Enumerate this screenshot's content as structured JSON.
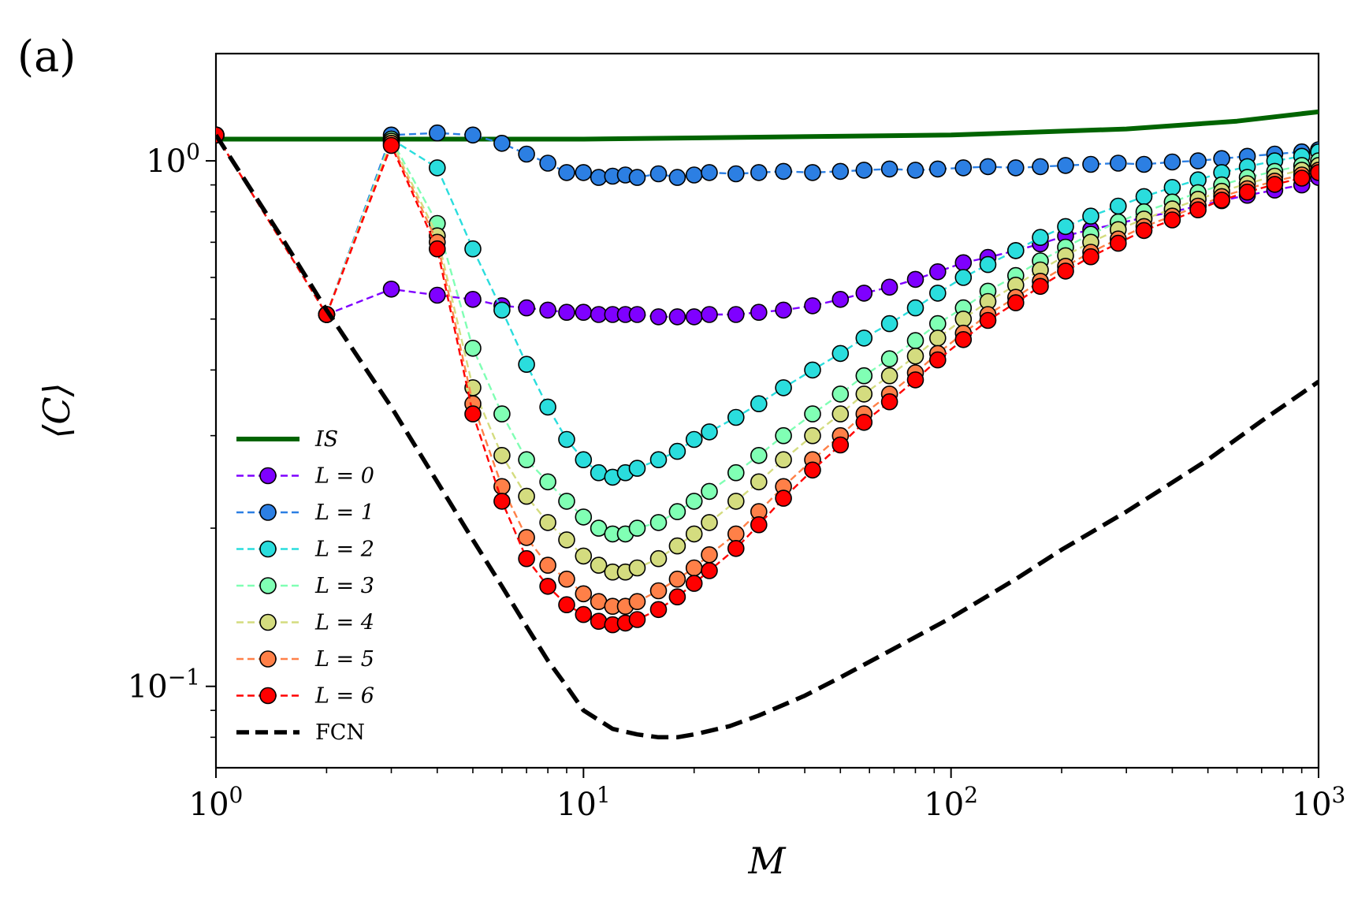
{
  "panel_label": "(a)",
  "chart_data": {
    "type": "line",
    "title": "",
    "xlabel": "M",
    "ylabel": "⟨C⟩",
    "xscale": "log",
    "yscale": "log",
    "xlim": [
      1,
      1000
    ],
    "ylim": [
      0.07,
      1.6
    ],
    "legend_position": "lower-left",
    "x_ticks": [
      {
        "value": 1,
        "base": "10",
        "exp": "0"
      },
      {
        "value": 10,
        "base": "10",
        "exp": "1"
      },
      {
        "value": 100,
        "base": "10",
        "exp": "2"
      },
      {
        "value": 1000,
        "base": "10",
        "exp": "3"
      }
    ],
    "y_ticks": [
      {
        "value": 1,
        "base": "10",
        "exp": "0"
      },
      {
        "value": 0.1,
        "base": "10",
        "exp": "−1"
      }
    ],
    "series": [
      {
        "name": "IS",
        "label_base": "IS",
        "color": "#006400",
        "style": "solid",
        "markers": false,
        "x": [
          1,
          10,
          100,
          300,
          600,
          1000
        ],
        "y": [
          1.1,
          1.1,
          1.12,
          1.15,
          1.19,
          1.24
        ]
      },
      {
        "name": "L = 0",
        "label_base": "L = 0",
        "color": "#7f00ff",
        "style": "dashed",
        "markers": true,
        "x": [
          1,
          2,
          3,
          4,
          5,
          6,
          7,
          8,
          9,
          10,
          11,
          12,
          13,
          14,
          16,
          18,
          20,
          22,
          26,
          30,
          35,
          42,
          50,
          58,
          68,
          80,
          92,
          108,
          126,
          150,
          175,
          205,
          240,
          285,
          335,
          400,
          470,
          545,
          640,
          760,
          900,
          1000
        ],
        "y": [
          1.12,
          0.51,
          0.57,
          0.555,
          0.545,
          0.53,
          0.525,
          0.52,
          0.515,
          0.515,
          0.51,
          0.51,
          0.51,
          0.51,
          0.505,
          0.505,
          0.505,
          0.51,
          0.51,
          0.515,
          0.52,
          0.53,
          0.545,
          0.56,
          0.575,
          0.595,
          0.615,
          0.64,
          0.655,
          0.675,
          0.695,
          0.72,
          0.74,
          0.76,
          0.78,
          0.8,
          0.82,
          0.84,
          0.86,
          0.88,
          0.9,
          0.93
        ]
      },
      {
        "name": "L = 1",
        "label_base": "L = 1",
        "color": "#2c7fe3",
        "style": "dashed",
        "markers": true,
        "x": [
          1,
          2,
          3,
          4,
          5,
          6,
          7,
          8,
          9,
          10,
          11,
          12,
          13,
          14,
          16,
          18,
          20,
          22,
          26,
          30,
          35,
          42,
          50,
          58,
          68,
          80,
          92,
          108,
          126,
          150,
          175,
          205,
          240,
          285,
          335,
          400,
          470,
          545,
          640,
          760,
          900,
          1000
        ],
        "y": [
          1.12,
          0.51,
          1.12,
          1.13,
          1.12,
          1.08,
          1.03,
          0.99,
          0.95,
          0.95,
          0.93,
          0.935,
          0.94,
          0.93,
          0.945,
          0.93,
          0.94,
          0.95,
          0.945,
          0.95,
          0.955,
          0.95,
          0.955,
          0.96,
          0.965,
          0.96,
          0.965,
          0.97,
          0.975,
          0.97,
          0.975,
          0.98,
          0.985,
          0.99,
          0.985,
          0.995,
          1.0,
          1.01,
          1.02,
          1.03,
          1.04,
          1.05
        ]
      },
      {
        "name": "L = 2",
        "label_base": "L = 2",
        "color": "#2adddd",
        "style": "dashed",
        "markers": true,
        "x": [
          1,
          2,
          3,
          4,
          5,
          6,
          7,
          8,
          9,
          10,
          11,
          12,
          13,
          14,
          16,
          18,
          20,
          22,
          26,
          30,
          35,
          42,
          50,
          58,
          68,
          80,
          92,
          108,
          126,
          150,
          175,
          205,
          240,
          285,
          335,
          400,
          470,
          545,
          640,
          760,
          900,
          1000
        ],
        "y": [
          1.12,
          0.51,
          1.1,
          0.97,
          0.68,
          0.52,
          0.41,
          0.34,
          0.295,
          0.27,
          0.255,
          0.25,
          0.255,
          0.26,
          0.27,
          0.28,
          0.295,
          0.305,
          0.325,
          0.345,
          0.37,
          0.4,
          0.43,
          0.46,
          0.49,
          0.525,
          0.56,
          0.6,
          0.635,
          0.675,
          0.715,
          0.75,
          0.785,
          0.82,
          0.855,
          0.89,
          0.92,
          0.95,
          0.975,
          1.0,
          1.02,
          1.04
        ]
      },
      {
        "name": "L = 3",
        "label_base": "L = 3",
        "color": "#80ffb4",
        "style": "dashed",
        "markers": true,
        "x": [
          1,
          2,
          3,
          4,
          5,
          6,
          7,
          8,
          9,
          10,
          11,
          12,
          13,
          14,
          16,
          18,
          20,
          22,
          26,
          30,
          35,
          42,
          50,
          58,
          68,
          80,
          92,
          108,
          126,
          150,
          175,
          205,
          240,
          285,
          335,
          400,
          470,
          545,
          640,
          760,
          900,
          1000
        ],
        "y": [
          1.12,
          0.51,
          1.1,
          0.76,
          0.44,
          0.33,
          0.27,
          0.245,
          0.225,
          0.21,
          0.2,
          0.195,
          0.195,
          0.2,
          0.205,
          0.215,
          0.225,
          0.235,
          0.255,
          0.275,
          0.3,
          0.33,
          0.36,
          0.39,
          0.42,
          0.455,
          0.49,
          0.525,
          0.565,
          0.605,
          0.645,
          0.685,
          0.725,
          0.765,
          0.8,
          0.835,
          0.87,
          0.9,
          0.93,
          0.955,
          0.98,
          1.0
        ]
      },
      {
        "name": "L = 4",
        "label_base": "L = 4",
        "color": "#d4dc7f",
        "style": "dashed",
        "markers": true,
        "x": [
          1,
          2,
          3,
          4,
          5,
          6,
          7,
          8,
          9,
          10,
          11,
          12,
          13,
          14,
          16,
          18,
          20,
          22,
          26,
          30,
          35,
          42,
          50,
          58,
          68,
          80,
          92,
          108,
          126,
          150,
          175,
          205,
          240,
          285,
          335,
          400,
          470,
          545,
          640,
          760,
          900,
          1000
        ],
        "y": [
          1.12,
          0.51,
          1.09,
          0.72,
          0.37,
          0.275,
          0.23,
          0.205,
          0.19,
          0.177,
          0.17,
          0.165,
          0.165,
          0.168,
          0.175,
          0.185,
          0.195,
          0.205,
          0.225,
          0.245,
          0.27,
          0.3,
          0.33,
          0.36,
          0.39,
          0.425,
          0.46,
          0.5,
          0.54,
          0.58,
          0.62,
          0.66,
          0.7,
          0.74,
          0.775,
          0.81,
          0.845,
          0.875,
          0.905,
          0.935,
          0.96,
          0.98
        ]
      },
      {
        "name": "L = 5",
        "label_base": "L = 5",
        "color": "#ff8048",
        "style": "dashed",
        "markers": true,
        "x": [
          1,
          2,
          3,
          4,
          5,
          6,
          7,
          8,
          9,
          10,
          11,
          12,
          13,
          14,
          16,
          18,
          20,
          22,
          26,
          30,
          35,
          42,
          50,
          58,
          68,
          80,
          92,
          108,
          126,
          150,
          175,
          205,
          240,
          285,
          335,
          400,
          470,
          545,
          640,
          760,
          900,
          1000
        ],
        "y": [
          1.12,
          0.51,
          1.08,
          0.7,
          0.345,
          0.24,
          0.192,
          0.17,
          0.16,
          0.15,
          0.145,
          0.142,
          0.142,
          0.145,
          0.152,
          0.16,
          0.168,
          0.178,
          0.195,
          0.215,
          0.24,
          0.27,
          0.3,
          0.33,
          0.36,
          0.395,
          0.43,
          0.47,
          0.51,
          0.55,
          0.59,
          0.63,
          0.67,
          0.71,
          0.75,
          0.785,
          0.82,
          0.855,
          0.885,
          0.915,
          0.94,
          0.96
        ]
      },
      {
        "name": "L = 6",
        "label_base": "L = 6",
        "color": "#ff0000",
        "style": "dashed",
        "markers": true,
        "x": [
          1,
          2,
          3,
          4,
          5,
          6,
          7,
          8,
          9,
          10,
          11,
          12,
          13,
          14,
          16,
          18,
          20,
          22,
          26,
          30,
          35,
          42,
          50,
          58,
          68,
          80,
          92,
          108,
          126,
          150,
          175,
          205,
          240,
          285,
          335,
          400,
          470,
          545,
          640,
          760,
          900,
          1000
        ],
        "y": [
          1.12,
          0.51,
          1.07,
          0.68,
          0.33,
          0.225,
          0.175,
          0.155,
          0.143,
          0.137,
          0.133,
          0.131,
          0.132,
          0.134,
          0.14,
          0.148,
          0.157,
          0.166,
          0.183,
          0.203,
          0.228,
          0.258,
          0.288,
          0.318,
          0.348,
          0.383,
          0.418,
          0.457,
          0.497,
          0.537,
          0.577,
          0.617,
          0.657,
          0.697,
          0.737,
          0.772,
          0.807,
          0.842,
          0.872,
          0.902,
          0.927,
          0.95
        ]
      },
      {
        "name": "FCN",
        "label_base": "FCN",
        "color": "#000000",
        "style": "dashed-thick",
        "markers": false,
        "x": [
          1,
          1.5,
          2,
          3,
          4,
          5,
          6,
          7,
          8,
          9,
          10,
          12,
          14,
          16,
          18,
          20,
          25,
          30,
          40,
          50,
          70,
          100,
          150,
          200,
          300,
          500,
          700,
          1000
        ],
        "y": [
          1.12,
          0.72,
          0.52,
          0.34,
          0.245,
          0.19,
          0.155,
          0.13,
          0.112,
          0.1,
          0.09,
          0.083,
          0.081,
          0.08,
          0.08,
          0.081,
          0.084,
          0.088,
          0.096,
          0.104,
          0.118,
          0.135,
          0.16,
          0.182,
          0.215,
          0.27,
          0.32,
          0.38
        ]
      }
    ]
  }
}
